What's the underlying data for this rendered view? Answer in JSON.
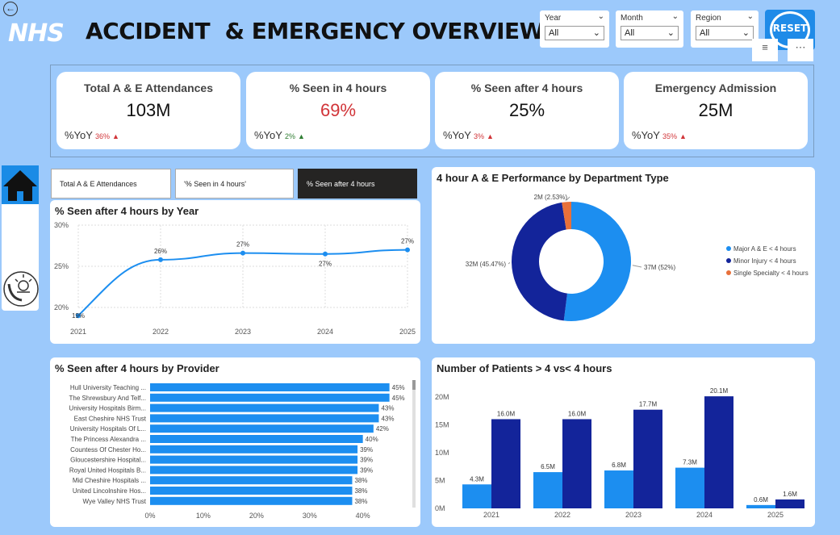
{
  "header": {
    "logo": "NHS",
    "title": "ACCIDENT  & EMERGENCY OVERVIEW",
    "back_icon": "arrow-left-icon"
  },
  "filters": [
    {
      "label": "Year",
      "value": "All"
    },
    {
      "label": "Month",
      "value": "All"
    },
    {
      "label": "Region",
      "value": "All"
    }
  ],
  "reset_label": "RESET",
  "kpis": [
    {
      "label": "Total A & E Attendances",
      "value": "103M",
      "yoy_label": "%YoY",
      "yoy": "36%",
      "value_color": "#111111",
      "trend_color": "#d13438",
      "trend": "up"
    },
    {
      "label": "% Seen in 4 hours",
      "value": "69%",
      "yoy_label": "%YoY",
      "yoy": "2%",
      "value_color": "#d13438",
      "trend_color": "#2e7d32",
      "trend": "up"
    },
    {
      "label": "% Seen after 4 hours",
      "value": "25%",
      "yoy_label": "%YoY",
      "yoy": "3%",
      "value_color": "#111111",
      "trend_color": "#d13438",
      "trend": "up"
    },
    {
      "label": "Emergency Admission",
      "value": "25M",
      "yoy_label": "%YoY",
      "yoy": "35%",
      "value_color": "#111111",
      "trend_color": "#d13438",
      "trend": "up"
    }
  ],
  "tabs": [
    {
      "label": "Total A & E Attendances",
      "active": false
    },
    {
      "label": "'% Seen in 4 hours'",
      "active": false
    },
    {
      "label": "% Seen after 4 hours",
      "active": true
    }
  ],
  "colors": {
    "accent": "#1f8be8",
    "dark_blue": "#13249a",
    "light_blue": "#1c8ef0",
    "orange": "#e8703a",
    "background": "#9cc9fb"
  },
  "chart_data": [
    {
      "id": "line",
      "type": "line",
      "title": "% Seen after 4 hours by Year",
      "x": [
        "2021",
        "2022",
        "2023",
        "2024",
        "2025"
      ],
      "values": [
        19,
        25.8,
        26.6,
        26.5,
        27
      ],
      "labels": [
        "19%",
        "26%",
        "27%",
        "27%",
        "27%"
      ],
      "yticks": [
        "20%",
        "25%",
        "30%"
      ],
      "ylim": [
        20,
        30
      ],
      "grid": true
    },
    {
      "id": "donut",
      "type": "pie",
      "title": "4 hour A & E Performance by Department Type",
      "slices": [
        {
          "name": "Major A & E < 4 hours",
          "value": 52,
          "label": "37M (52%)",
          "color": "#1c8ef0"
        },
        {
          "name": "Minor Injury < 4 hours",
          "value": 45.47,
          "label": "32M (45.47%)",
          "color": "#13249a"
        },
        {
          "name": "Single Specialty < 4 hours",
          "value": 2.53,
          "label": "2M (2.53%)",
          "color": "#e8703a"
        }
      ],
      "legend": "right"
    },
    {
      "id": "hbar",
      "type": "bar",
      "title": "% Seen after 4 hours by Provider",
      "categories": [
        "Hull University Teaching ...",
        "The Shrewsbury And Telf...",
        "University Hospitals Birm...",
        "East Cheshire NHS Trust",
        "University Hospitals Of L...",
        "The Princess Alexandra ...",
        "Countess Of Chester Ho...",
        "Gloucestershire Hospital...",
        "Royal United Hospitals B...",
        "Mid Cheshire Hospitals ...",
        "United Lincolnshire Hos...",
        "Wye Valley NHS Trust"
      ],
      "values": [
        45,
        45,
        43,
        43,
        42,
        40,
        39,
        39,
        39,
        38,
        38,
        38
      ],
      "labels": [
        "45%",
        "45%",
        "43%",
        "43%",
        "42%",
        "40%",
        "39%",
        "39%",
        "39%",
        "38%",
        "38%",
        "38%"
      ],
      "xticks": [
        "0%",
        "10%",
        "20%",
        "30%",
        "40%"
      ],
      "xlim": [
        0,
        49
      ]
    },
    {
      "id": "cbar",
      "type": "bar",
      "title": "Number of Patients > 4 vs< 4 hours",
      "categories": [
        "2021",
        "2022",
        "2023",
        "2024",
        "2025"
      ],
      "series": [
        {
          "values": [
            4.3,
            6.5,
            6.8,
            7.3,
            0.6
          ],
          "labels": [
            "4.3M",
            "6.5M",
            "6.8M",
            "7.3M",
            "0.6M"
          ],
          "color": "#1c8ef0"
        },
        {
          "values": [
            16.0,
            16.0,
            17.7,
            20.1,
            1.6
          ],
          "labels": [
            "16.0M",
            "16.0M",
            "17.7M",
            "20.1M",
            "1.6M"
          ],
          "color": "#13249a"
        }
      ],
      "yticks": [
        "0M",
        "5M",
        "10M",
        "15M",
        "20M"
      ],
      "ylim": [
        0,
        22
      ]
    }
  ]
}
